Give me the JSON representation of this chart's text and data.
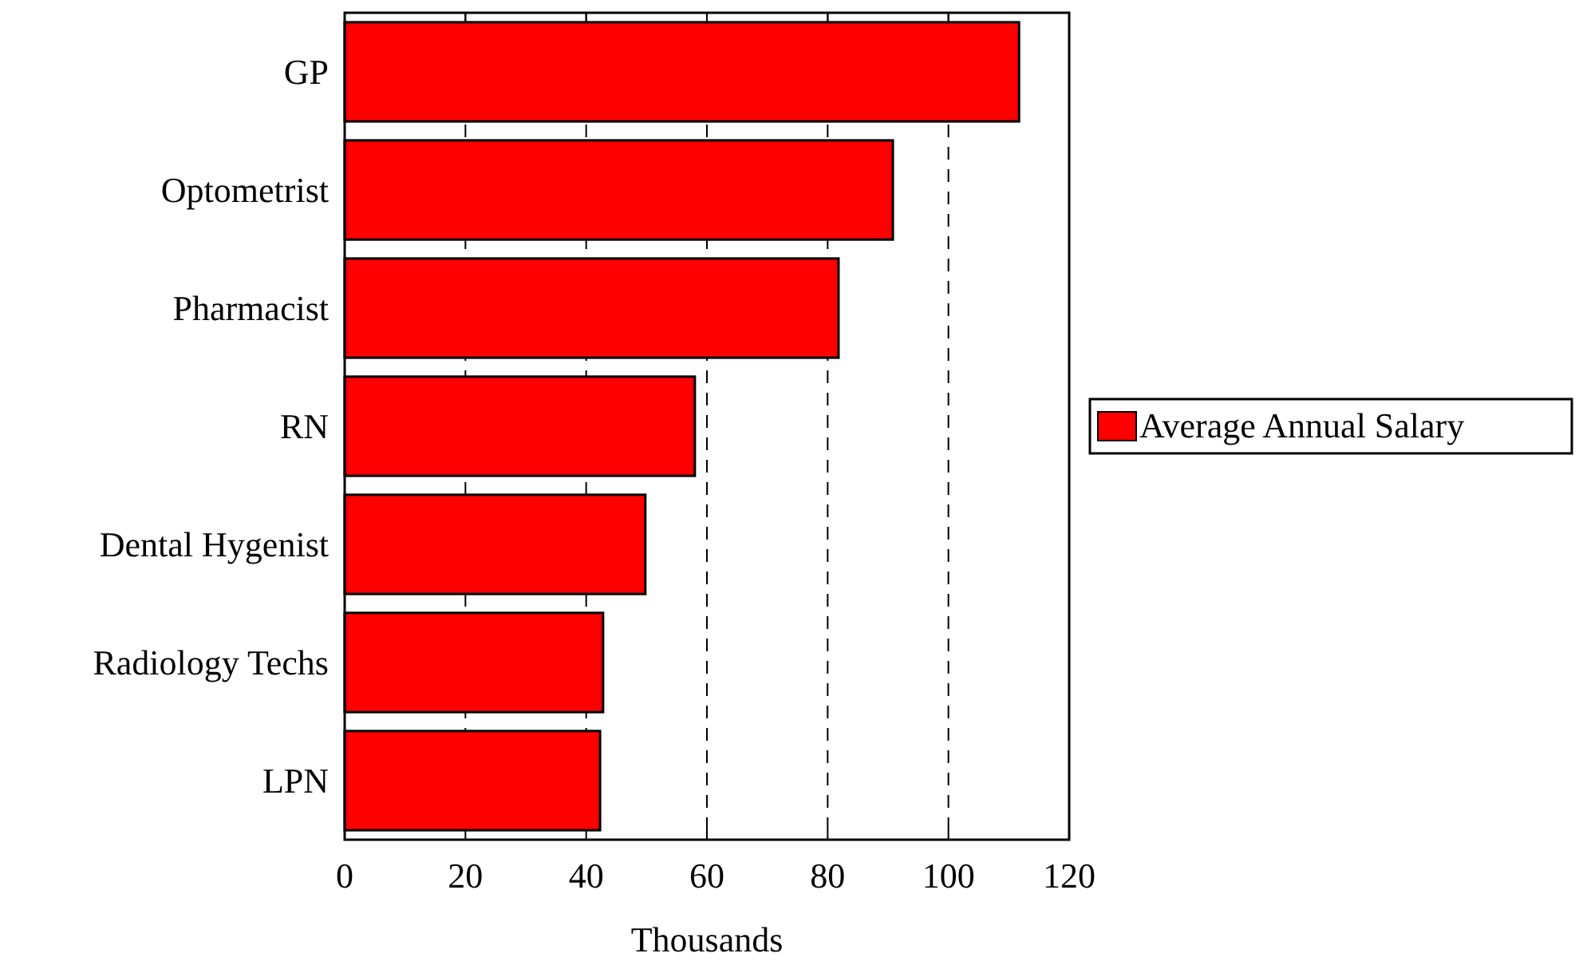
{
  "chart_data": {
    "type": "bar",
    "orientation": "horizontal",
    "xlabel": "Thousands",
    "categories": [
      "GP",
      "Optometrist",
      "Pharmacist",
      "RN",
      "Dental Hygenist",
      "Radiology Techs",
      "LPN"
    ],
    "series": [
      {
        "name": "Average Annual Salary",
        "color": "#ff0000",
        "values": [
          111.7,
          90.8,
          81.8,
          58,
          49.8,
          42.8,
          42.3
        ]
      }
    ],
    "xlim": [
      0,
      120
    ],
    "xticks": [
      0,
      20,
      40,
      60,
      80,
      100,
      120
    ],
    "grid": "x",
    "legend": "right"
  }
}
